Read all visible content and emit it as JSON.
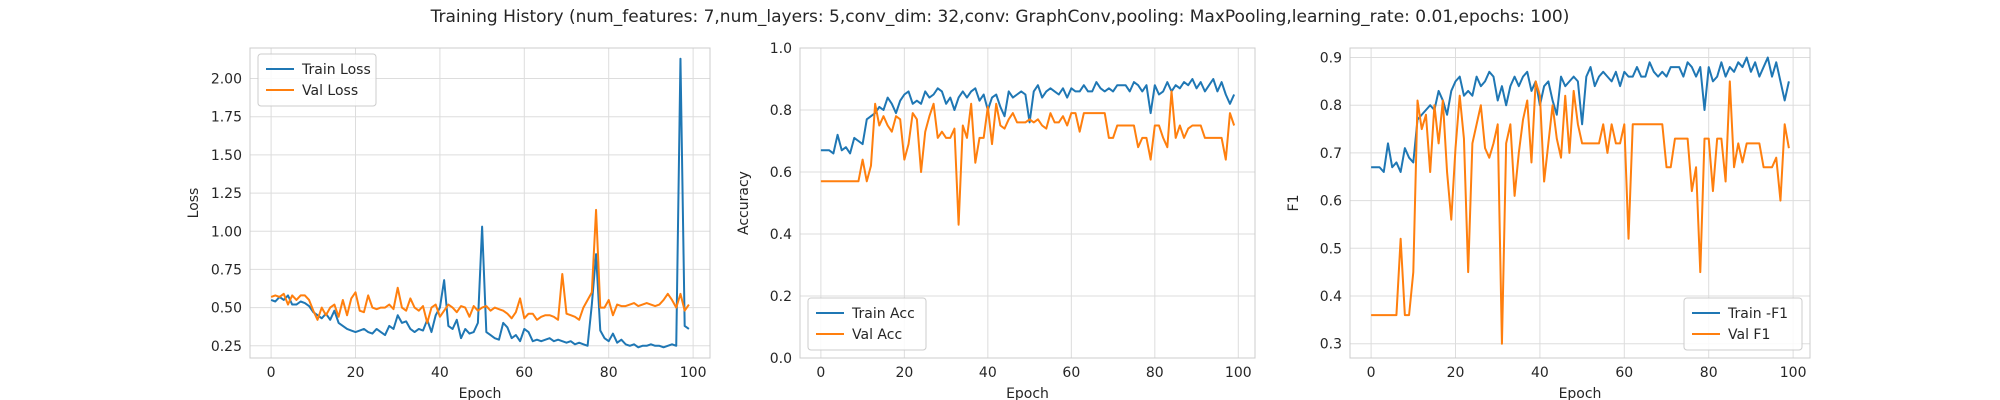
{
  "figure": {
    "title": "Training History (num_features: 7,num_layers: 5,conv_dim: 32,conv: GraphConv,pooling: MaxPooling,learning_rate: 0.01,epochs: 100)"
  },
  "colors": {
    "train": "#1f77b4",
    "val": "#ff7f0e",
    "grid": "#dddddd",
    "frame": "#cccccc",
    "text": "#262626"
  },
  "chart_data": [
    {
      "type": "line",
      "xlabel": "Epoch",
      "ylabel": "Loss",
      "xlim": [
        -5,
        104
      ],
      "ylim": [
        0.17,
        2.2
      ],
      "xticks": [
        0,
        20,
        40,
        60,
        80,
        100
      ],
      "xtick_labels": [
        "0",
        "20",
        "40",
        "60",
        "80",
        "100"
      ],
      "yticks": [
        0.25,
        0.5,
        0.75,
        1.0,
        1.25,
        1.5,
        1.75,
        2.0
      ],
      "ytick_labels": [
        "0.25",
        "0.50",
        "0.75",
        "1.00",
        "1.25",
        "1.50",
        "1.75",
        "2.00"
      ],
      "grid": true,
      "legend_position": "upper-left",
      "series": [
        {
          "name": "Train Loss",
          "color": "#1f77b4",
          "values": [
            0.55,
            0.54,
            0.57,
            0.55,
            0.58,
            0.52,
            0.52,
            0.54,
            0.53,
            0.51,
            0.47,
            0.45,
            0.43,
            0.46,
            0.42,
            0.48,
            0.4,
            0.38,
            0.36,
            0.35,
            0.34,
            0.35,
            0.36,
            0.34,
            0.33,
            0.36,
            0.34,
            0.32,
            0.38,
            0.36,
            0.45,
            0.4,
            0.41,
            0.36,
            0.34,
            0.36,
            0.35,
            0.42,
            0.34,
            0.45,
            0.5,
            0.68,
            0.38,
            0.36,
            0.42,
            0.3,
            0.36,
            0.33,
            0.34,
            0.4,
            1.03,
            0.34,
            0.32,
            0.3,
            0.29,
            0.4,
            0.37,
            0.3,
            0.32,
            0.28,
            0.36,
            0.34,
            0.28,
            0.29,
            0.28,
            0.29,
            0.3,
            0.28,
            0.29,
            0.28,
            0.27,
            0.28,
            0.26,
            0.27,
            0.26,
            0.25,
            0.52,
            0.85,
            0.35,
            0.3,
            0.28,
            0.33,
            0.27,
            0.29,
            0.26,
            0.25,
            0.26,
            0.24,
            0.25,
            0.25,
            0.26,
            0.25,
            0.25,
            0.24,
            0.25,
            0.26,
            0.25,
            2.13,
            0.38,
            0.36
          ]
        },
        {
          "name": "Val Loss",
          "color": "#ff7f0e",
          "values": [
            0.57,
            0.58,
            0.57,
            0.59,
            0.52,
            0.58,
            0.55,
            0.58,
            0.58,
            0.55,
            0.48,
            0.42,
            0.5,
            0.45,
            0.5,
            0.52,
            0.44,
            0.55,
            0.45,
            0.56,
            0.6,
            0.48,
            0.47,
            0.58,
            0.5,
            0.49,
            0.5,
            0.5,
            0.52,
            0.49,
            0.63,
            0.5,
            0.48,
            0.56,
            0.5,
            0.48,
            0.51,
            0.4,
            0.5,
            0.52,
            0.44,
            0.48,
            0.52,
            0.5,
            0.47,
            0.51,
            0.5,
            0.44,
            0.51,
            0.48,
            0.5,
            0.51,
            0.48,
            0.5,
            0.49,
            0.48,
            0.46,
            0.43,
            0.47,
            0.56,
            0.43,
            0.46,
            0.46,
            0.42,
            0.44,
            0.45,
            0.45,
            0.44,
            0.42,
            0.72,
            0.46,
            0.45,
            0.44,
            0.42,
            0.5,
            0.55,
            0.6,
            1.14,
            0.5,
            0.5,
            0.55,
            0.45,
            0.52,
            0.51,
            0.51,
            0.52,
            0.53,
            0.51,
            0.52,
            0.53,
            0.52,
            0.51,
            0.52,
            0.55,
            0.59,
            0.55,
            0.5,
            0.59,
            0.48,
            0.52
          ]
        }
      ]
    },
    {
      "type": "line",
      "xlabel": "Epoch",
      "ylabel": "Accuracy",
      "xlim": [
        -5,
        104
      ],
      "ylim": [
        0.0,
        1.0
      ],
      "xticks": [
        0,
        20,
        40,
        60,
        80,
        100
      ],
      "xtick_labels": [
        "0",
        "20",
        "40",
        "60",
        "80",
        "100"
      ],
      "yticks": [
        0.0,
        0.2,
        0.4,
        0.6,
        0.8,
        1.0
      ],
      "ytick_labels": [
        "0.0",
        "0.2",
        "0.4",
        "0.6",
        "0.8",
        "1.0"
      ],
      "grid": true,
      "legend_position": "lower-left",
      "series": [
        {
          "name": "Train Acc",
          "color": "#1f77b4",
          "values": [
            0.67,
            0.67,
            0.67,
            0.66,
            0.72,
            0.67,
            0.68,
            0.66,
            0.71,
            0.7,
            0.69,
            0.77,
            0.78,
            0.79,
            0.81,
            0.8,
            0.84,
            0.82,
            0.79,
            0.83,
            0.85,
            0.86,
            0.82,
            0.83,
            0.82,
            0.86,
            0.84,
            0.85,
            0.87,
            0.86,
            0.82,
            0.84,
            0.8,
            0.84,
            0.86,
            0.84,
            0.86,
            0.87,
            0.83,
            0.85,
            0.8,
            0.84,
            0.85,
            0.81,
            0.78,
            0.86,
            0.84,
            0.85,
            0.86,
            0.85,
            0.76,
            0.86,
            0.88,
            0.84,
            0.86,
            0.87,
            0.86,
            0.85,
            0.87,
            0.84,
            0.87,
            0.86,
            0.86,
            0.88,
            0.86,
            0.86,
            0.89,
            0.87,
            0.86,
            0.87,
            0.86,
            0.88,
            0.88,
            0.88,
            0.86,
            0.89,
            0.88,
            0.86,
            0.88,
            0.79,
            0.88,
            0.85,
            0.86,
            0.89,
            0.86,
            0.88,
            0.87,
            0.89,
            0.88,
            0.9,
            0.87,
            0.89,
            0.86,
            0.88,
            0.9,
            0.86,
            0.89,
            0.85,
            0.82,
            0.85
          ]
        },
        {
          "name": "Val Acc",
          "color": "#ff7f0e",
          "values": [
            0.57,
            0.57,
            0.57,
            0.57,
            0.57,
            0.57,
            0.57,
            0.57,
            0.57,
            0.57,
            0.64,
            0.57,
            0.62,
            0.82,
            0.75,
            0.78,
            0.75,
            0.73,
            0.78,
            0.77,
            0.64,
            0.69,
            0.79,
            0.77,
            0.6,
            0.73,
            0.78,
            0.82,
            0.71,
            0.73,
            0.71,
            0.71,
            0.74,
            0.43,
            0.75,
            0.71,
            0.82,
            0.63,
            0.71,
            0.71,
            0.81,
            0.69,
            0.82,
            0.75,
            0.74,
            0.77,
            0.79,
            0.76,
            0.76,
            0.76,
            0.77,
            0.76,
            0.77,
            0.75,
            0.74,
            0.79,
            0.76,
            0.76,
            0.78,
            0.75,
            0.79,
            0.79,
            0.73,
            0.79,
            0.79,
            0.79,
            0.79,
            0.79,
            0.79,
            0.71,
            0.71,
            0.75,
            0.75,
            0.75,
            0.75,
            0.75,
            0.68,
            0.71,
            0.71,
            0.64,
            0.75,
            0.75,
            0.71,
            0.68,
            0.86,
            0.71,
            0.75,
            0.71,
            0.74,
            0.75,
            0.75,
            0.75,
            0.71,
            0.71,
            0.71,
            0.71,
            0.71,
            0.64,
            0.79,
            0.75
          ]
        }
      ]
    },
    {
      "type": "line",
      "xlabel": "Epoch",
      "ylabel": "F1",
      "xlim": [
        -5,
        104
      ],
      "ylim": [
        0.27,
        0.92
      ],
      "xticks": [
        0,
        20,
        40,
        60,
        80,
        100
      ],
      "xtick_labels": [
        "0",
        "20",
        "40",
        "60",
        "80",
        "100"
      ],
      "yticks": [
        0.3,
        0.4,
        0.5,
        0.6,
        0.7,
        0.8,
        0.9
      ],
      "ytick_labels": [
        "0.3",
        "0.4",
        "0.5",
        "0.6",
        "0.7",
        "0.8",
        "0.9"
      ],
      "grid": true,
      "legend_position": "lower-right",
      "series": [
        {
          "name": "Train -F1",
          "color": "#1f77b4",
          "values": [
            0.67,
            0.67,
            0.67,
            0.66,
            0.72,
            0.67,
            0.68,
            0.66,
            0.71,
            0.69,
            0.68,
            0.77,
            0.78,
            0.79,
            0.8,
            0.79,
            0.83,
            0.81,
            0.78,
            0.83,
            0.85,
            0.86,
            0.82,
            0.83,
            0.82,
            0.86,
            0.84,
            0.85,
            0.87,
            0.86,
            0.81,
            0.84,
            0.8,
            0.84,
            0.86,
            0.84,
            0.86,
            0.87,
            0.83,
            0.85,
            0.8,
            0.84,
            0.85,
            0.81,
            0.78,
            0.86,
            0.84,
            0.85,
            0.86,
            0.85,
            0.76,
            0.86,
            0.88,
            0.84,
            0.86,
            0.87,
            0.86,
            0.85,
            0.87,
            0.84,
            0.87,
            0.86,
            0.86,
            0.88,
            0.86,
            0.86,
            0.89,
            0.87,
            0.86,
            0.87,
            0.86,
            0.88,
            0.88,
            0.88,
            0.86,
            0.89,
            0.88,
            0.86,
            0.88,
            0.79,
            0.88,
            0.85,
            0.86,
            0.89,
            0.86,
            0.88,
            0.87,
            0.89,
            0.88,
            0.9,
            0.87,
            0.89,
            0.86,
            0.88,
            0.9,
            0.86,
            0.89,
            0.85,
            0.81,
            0.85
          ]
        },
        {
          "name": "Val F1",
          "color": "#ff7f0e",
          "values": [
            0.36,
            0.36,
            0.36,
            0.36,
            0.36,
            0.36,
            0.36,
            0.52,
            0.36,
            0.36,
            0.45,
            0.81,
            0.75,
            0.78,
            0.66,
            0.8,
            0.72,
            0.81,
            0.66,
            0.56,
            0.71,
            0.82,
            0.73,
            0.45,
            0.72,
            0.76,
            0.8,
            0.71,
            0.69,
            0.72,
            0.76,
            0.3,
            0.72,
            0.76,
            0.61,
            0.7,
            0.77,
            0.81,
            0.68,
            0.85,
            0.82,
            0.64,
            0.72,
            0.8,
            0.73,
            0.69,
            0.82,
            0.7,
            0.83,
            0.76,
            0.72,
            0.72,
            0.72,
            0.72,
            0.72,
            0.76,
            0.7,
            0.76,
            0.72,
            0.72,
            0.76,
            0.52,
            0.76,
            0.76,
            0.76,
            0.76,
            0.76,
            0.76,
            0.76,
            0.76,
            0.67,
            0.67,
            0.73,
            0.73,
            0.73,
            0.73,
            0.62,
            0.67,
            0.45,
            0.73,
            0.73,
            0.62,
            0.73,
            0.73,
            0.64,
            0.85,
            0.67,
            0.72,
            0.68,
            0.72,
            0.72,
            0.72,
            0.72,
            0.67,
            0.67,
            0.67,
            0.69,
            0.6,
            0.76,
            0.71
          ]
        }
      ]
    }
  ]
}
